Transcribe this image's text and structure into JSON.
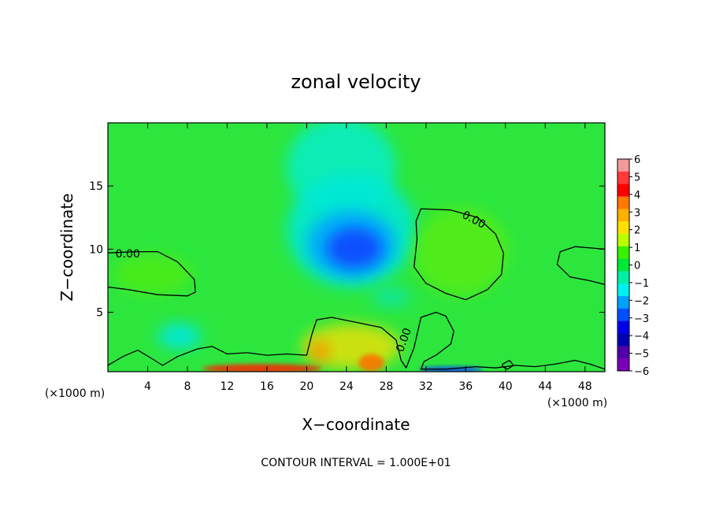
{
  "chart_data": {
    "type": "heatmap",
    "title": "zonal velocity",
    "xlabel": "X−coordinate",
    "ylabel": "Z−coordinate",
    "x_unit_left": "(×1000 m)",
    "x_unit_right": "(×1000 m)",
    "footer": "CONTOUR INTERVAL = 1.000E+01",
    "xlim": [
      0,
      50
    ],
    "ylim": [
      0.3,
      20
    ],
    "x_ticks": [
      4,
      8,
      12,
      16,
      20,
      24,
      28,
      32,
      36,
      40,
      44,
      48
    ],
    "x_tick_labels": [
      "4",
      "8",
      "12",
      "16",
      "20",
      "24",
      "28",
      "32",
      "36",
      "40",
      "44",
      "48"
    ],
    "y_ticks": [
      5,
      10,
      15
    ],
    "y_tick_labels": [
      "5",
      "10",
      "15"
    ],
    "contour_labels": [
      {
        "text": "0.00",
        "x": 2.0,
        "y": 9.6,
        "rotate": 0
      },
      {
        "text": "0.00",
        "x": 36.8,
        "y": 12.3,
        "rotate": 28
      },
      {
        "text": "0.00",
        "x": 29.8,
        "y": 2.8,
        "rotate": -70
      }
    ],
    "colorbar": {
      "min": -6,
      "max": 6,
      "tick_values": [
        6,
        5,
        4,
        3,
        2,
        1,
        0,
        -1,
        -2,
        -3,
        -4,
        -5,
        -6
      ],
      "tick_labels": [
        "6",
        "5",
        "4",
        "3",
        "2",
        "1",
        "0",
        "−1",
        "−2",
        "−3",
        "−4",
        "−5",
        "−6"
      ],
      "colors": [
        "#f29a9a",
        "#ff3a3a",
        "#ff0000",
        "#ff7a00",
        "#ffb000",
        "#ffe000",
        "#b8ff00",
        "#38f000",
        "#00e838",
        "#00f0a8",
        "#00f0f0",
        "#00a0ff",
        "#0050ff",
        "#0000e8",
        "#0000b0",
        "#5000a8",
        "#7a00b8"
      ]
    },
    "background_color": "#2ce63e",
    "features": [
      {
        "name": "upper-cyan-plume",
        "type": "blob",
        "cx": 23.5,
        "cy": 16.5,
        "rx": 5.5,
        "ry": 4.0,
        "color": "#00f0e8",
        "opacity": 0.7
      },
      {
        "name": "cyan-region-mid",
        "type": "blob",
        "cx": 24.5,
        "cy": 11.5,
        "rx": 6.5,
        "ry": 4.5,
        "color": "#00e8d8",
        "opacity": 0.85
      },
      {
        "name": "blue-jet-outer",
        "type": "blob",
        "cx": 24.5,
        "cy": 10.4,
        "rx": 4.5,
        "ry": 2.7,
        "color": "#00aaff",
        "opacity": 0.9
      },
      {
        "name": "blue-jet-core",
        "type": "blob",
        "cx": 24.8,
        "cy": 10.1,
        "rx": 2.8,
        "ry": 1.6,
        "color": "#1050ff",
        "opacity": 1.0
      },
      {
        "name": "left-cyan-spot",
        "type": "blob",
        "cx": 7.2,
        "cy": 3.1,
        "rx": 2.2,
        "ry": 1.0,
        "color": "#00e8e0",
        "opacity": 0.9
      },
      {
        "name": "mid-cyan-spot",
        "type": "blob",
        "cx": 28.5,
        "cy": 6.2,
        "rx": 2.0,
        "ry": 0.8,
        "color": "#00e8d0",
        "opacity": 0.6
      },
      {
        "name": "yellow-region",
        "type": "blob",
        "cx": 24.5,
        "cy": 2.3,
        "rx": 5.0,
        "ry": 1.8,
        "color": "#ffe000",
        "opacity": 0.75
      },
      {
        "name": "orange-spot-a",
        "type": "blob",
        "cx": 21.3,
        "cy": 1.9,
        "rx": 1.0,
        "ry": 0.8,
        "color": "#ff8a00",
        "opacity": 0.85
      },
      {
        "name": "orange-spot-b",
        "type": "blob",
        "cx": 26.5,
        "cy": 1.0,
        "rx": 1.3,
        "ry": 0.7,
        "color": "#ff7000",
        "opacity": 0.85
      },
      {
        "name": "red-surface-band",
        "type": "blob",
        "cx": 15.5,
        "cy": 0.55,
        "rx": 6.0,
        "ry": 0.35,
        "color": "#ff2000",
        "opacity": 0.9
      },
      {
        "name": "blue-surface-band",
        "type": "blob",
        "cx": 34.5,
        "cy": 0.45,
        "rx": 3.2,
        "ry": 0.25,
        "color": "#1040ff",
        "opacity": 0.9
      },
      {
        "name": "left-plus-region",
        "type": "blob",
        "cx": 4.5,
        "cy": 8.0,
        "rx": 4.0,
        "ry": 1.6,
        "color": "#60f000",
        "opacity": 0.55
      },
      {
        "name": "right-plus-region",
        "type": "blob",
        "cx": 35.5,
        "cy": 9.8,
        "rx": 4.8,
        "ry": 3.5,
        "color": "#70f000",
        "opacity": 0.55
      }
    ],
    "contours": [
      {
        "name": "left-zero-contour",
        "points": [
          [
            0,
            7.0
          ],
          [
            2,
            6.8
          ],
          [
            5,
            6.4
          ],
          [
            8,
            6.3
          ],
          [
            8.8,
            6.6
          ],
          [
            8.7,
            7.6
          ],
          [
            7.0,
            9.0
          ],
          [
            5.0,
            9.8
          ],
          [
            2.8,
            9.8
          ],
          [
            0,
            9.7
          ]
        ]
      },
      {
        "name": "upper-right-zero-contour",
        "closed": true,
        "points": [
          [
            31.5,
            13.2
          ],
          [
            34.5,
            13.1
          ],
          [
            37.2,
            12.5
          ],
          [
            39.0,
            11.2
          ],
          [
            39.8,
            9.7
          ],
          [
            39.6,
            8.0
          ],
          [
            38.2,
            6.8
          ],
          [
            36.0,
            6.0
          ],
          [
            34.0,
            6.5
          ],
          [
            32.0,
            7.3
          ],
          [
            30.8,
            8.6
          ],
          [
            31.1,
            10.8
          ],
          [
            31.0,
            12.2
          ]
        ]
      },
      {
        "name": "right-edge-zero-contour",
        "points": [
          [
            50,
            10.0
          ],
          [
            47.0,
            10.2
          ],
          [
            45.5,
            9.8
          ],
          [
            45.2,
            8.8
          ],
          [
            46.5,
            7.8
          ],
          [
            48.5,
            7.5
          ],
          [
            50,
            7.2
          ]
        ]
      },
      {
        "name": "near-surface-zero-contour",
        "points": [
          [
            0,
            0.8
          ],
          [
            1.5,
            1.5
          ],
          [
            3.0,
            2.0
          ],
          [
            4.5,
            1.3
          ],
          [
            5.5,
            0.8
          ],
          [
            7.0,
            1.5
          ],
          [
            9.0,
            2.1
          ],
          [
            10.5,
            2.3
          ],
          [
            12.0,
            1.7
          ],
          [
            14.0,
            1.8
          ],
          [
            16.0,
            1.6
          ],
          [
            18.0,
            1.7
          ],
          [
            20.0,
            1.6
          ],
          [
            20.5,
            3.2
          ],
          [
            21.0,
            4.4
          ],
          [
            22.5,
            4.6
          ],
          [
            25.0,
            4.2
          ],
          [
            27.5,
            3.8
          ],
          [
            29.0,
            2.8
          ],
          [
            29.5,
            1.2
          ],
          [
            30.0,
            0.6
          ],
          [
            30.8,
            2.2
          ],
          [
            31.5,
            4.6
          ],
          [
            33.0,
            5.0
          ],
          [
            34.0,
            4.7
          ],
          [
            34.8,
            3.5
          ],
          [
            34.5,
            2.5
          ],
          [
            33.0,
            1.6
          ],
          [
            31.8,
            1.1
          ],
          [
            31.5,
            0.5
          ],
          [
            34.0,
            0.5
          ],
          [
            37.0,
            0.7
          ],
          [
            39.0,
            0.6
          ],
          [
            41.0,
            0.8
          ],
          [
            43.0,
            0.7
          ],
          [
            45.0,
            0.9
          ],
          [
            47.0,
            1.2
          ],
          [
            48.5,
            0.9
          ],
          [
            50,
            0.5
          ]
        ]
      },
      {
        "name": "small-right-contour",
        "closed": true,
        "points": [
          [
            39.7,
            0.9
          ],
          [
            40.4,
            1.2
          ],
          [
            40.8,
            0.8
          ],
          [
            40.2,
            0.5
          ],
          [
            39.7,
            0.7
          ]
        ]
      }
    ]
  }
}
